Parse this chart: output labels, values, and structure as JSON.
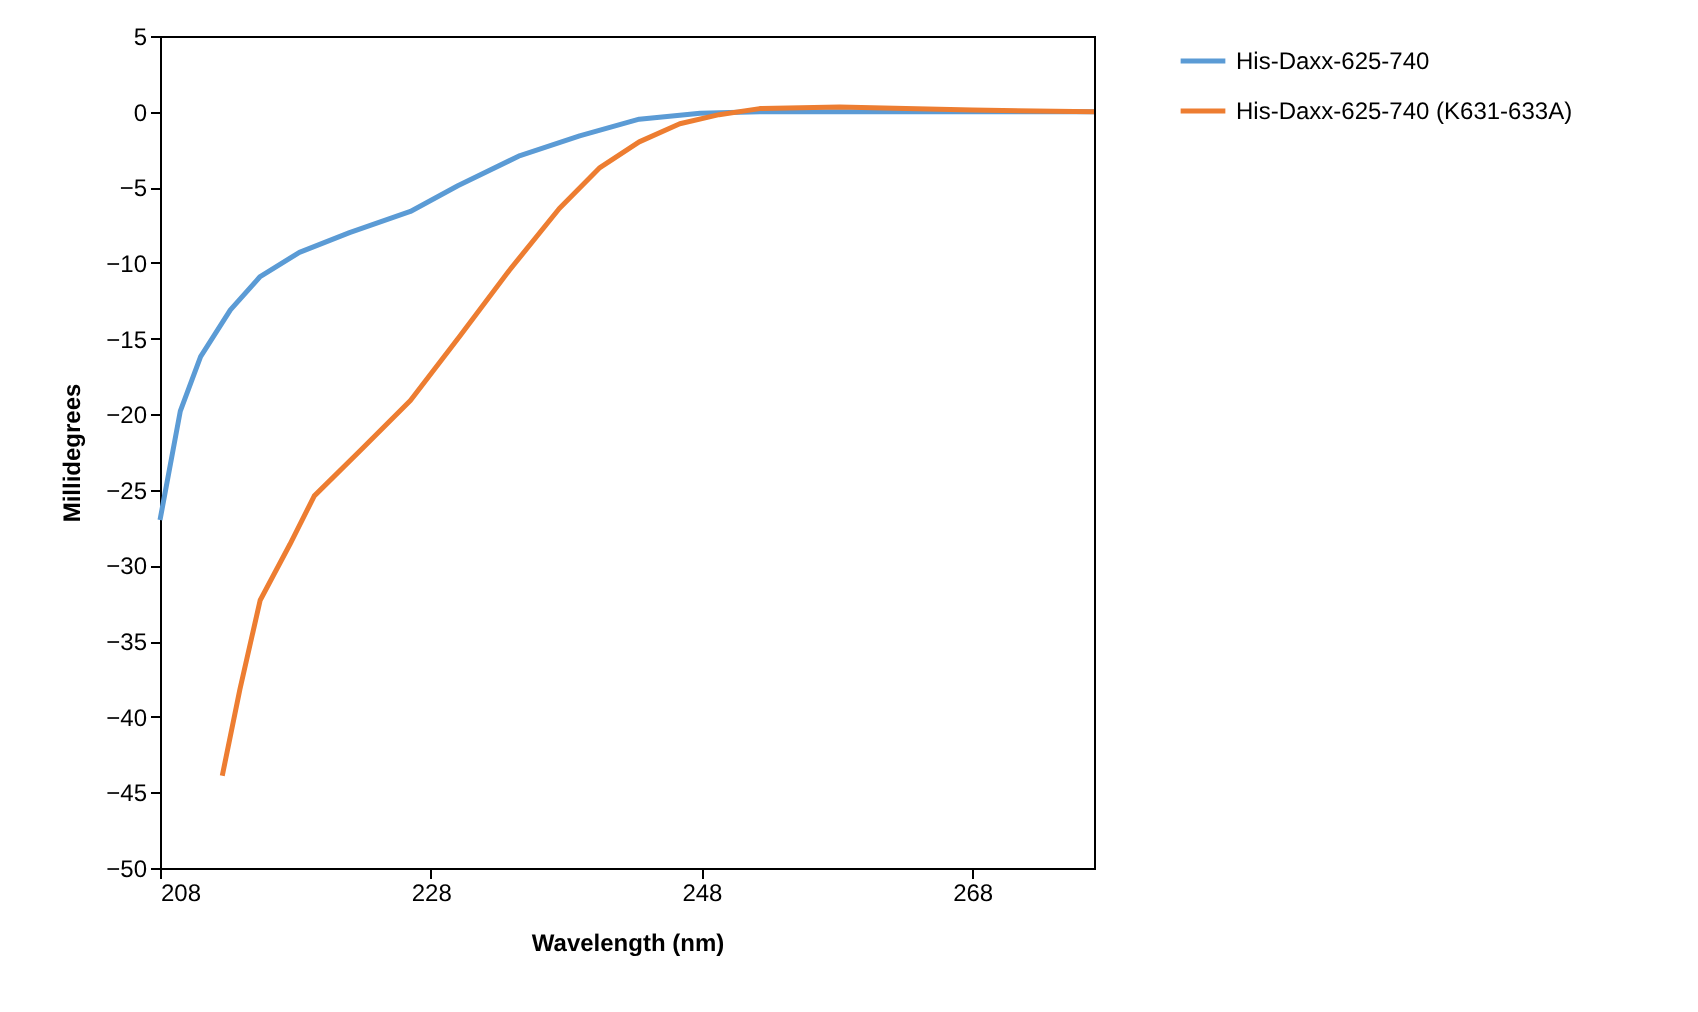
{
  "chart_data": {
    "type": "line",
    "xlabel": "Wavelength (nm)",
    "ylabel": "Millidegrees",
    "xlim": [
      208,
      277
    ],
    "xticks": [
      208,
      228,
      248,
      268
    ],
    "ylim": [
      -50,
      5
    ],
    "yticks": [
      -50,
      -45,
      -40,
      -35,
      -30,
      -25,
      -20,
      -15,
      -10,
      -5,
      0,
      5
    ],
    "grid": false,
    "legend": "right",
    "marker": "none",
    "line_style": "solid",
    "series": [
      {
        "name": "His-Daxx-625-740",
        "color": "#5b9bd5",
        "x": [
          208,
          209.5,
          211,
          213.2,
          215.4,
          218.3,
          222,
          226.5,
          230,
          234.6,
          239,
          243.4,
          247.9,
          252.3,
          260,
          268,
          277
        ],
        "values": [
          -27,
          -19.8,
          -16.2,
          -13.1,
          -10.9,
          -9.3,
          -8,
          -6.6,
          -4.9,
          -2.9,
          -1.6,
          -0.5,
          -0.1,
          0,
          0,
          0,
          0
        ]
      },
      {
        "name": "His-Daxx-625-740  (K631-633A)",
        "color": "#ed7d31",
        "x": [
          212.6,
          213.9,
          215.4,
          217.6,
          219.4,
          222.8,
          226.5,
          230.1,
          233.8,
          237.5,
          240.5,
          243.4,
          246.4,
          249.3,
          252.3,
          258.2,
          268,
          277
        ],
        "values": [
          -43.9,
          -38.2,
          -32.3,
          -28.6,
          -25.4,
          -22.4,
          -19.1,
          -14.9,
          -10.5,
          -6.4,
          -3.7,
          -2,
          -0.8,
          -0.2,
          0.2,
          0.3,
          0.1,
          0
        ]
      }
    ]
  }
}
